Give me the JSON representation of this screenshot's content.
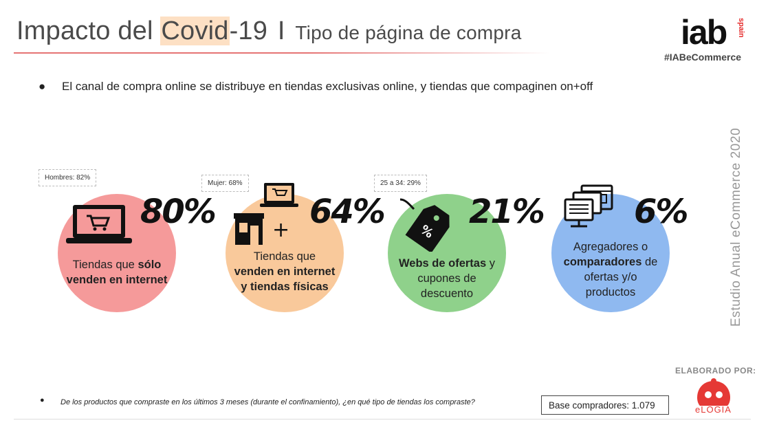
{
  "header": {
    "title_pre": "Impacto del ",
    "title_hl": "Covid",
    "title_post": "-19",
    "title_sep": "I",
    "subtitle": "Tipo de página de compra",
    "logo_text": "iab",
    "logo_sub": "spain",
    "hashtag": "#IABeCommerce"
  },
  "bullet": {
    "marker": "●",
    "text": "El canal de compra online se distribuye en tiendas exclusivas online, y tiendas que compaginen on+off"
  },
  "side_label": "Estudio Anual eCommerce  2020",
  "items": [
    {
      "percent": "80%",
      "callout": "Hombres: 82%",
      "text_pre": "Tiendas que ",
      "text_bold": "sólo venden en internet",
      "text_post": "",
      "color": "#f59a9a",
      "icon": "laptop-cart-icon"
    },
    {
      "percent": "64%",
      "callout": "Mujer: 68%",
      "text_pre": "Tiendas que ",
      "text_bold": "venden en internet y tiendas físicas",
      "text_post": "",
      "color": "#f9c99b",
      "icon": "store-plus-laptop-icon",
      "plus": "+"
    },
    {
      "percent": "21%",
      "callout": "25 a 34: 29%",
      "text_pre": "",
      "text_bold": "Webs de ofertas",
      "text_post": " y cupones de descuento",
      "color": "#8fd18b",
      "icon": "discount-tag-icon",
      "tag_text": "%"
    },
    {
      "percent": "6%",
      "callout": "",
      "text_pre": "Agregadores o ",
      "text_bold": "comparadores",
      "text_post": " de ofertas y/o productos",
      "color": "#8fb9f0",
      "icon": "comparison-screens-icon"
    }
  ],
  "footer": {
    "marker": "●",
    "question": "De los productos que compraste en los últimos 3 meses (durante el confinamiento), ¿en qué tipo de tiendas los compraste?",
    "base": "Base compradores: 1.079",
    "elaborado": "ELABORADO POR:",
    "brand": "eLOGIA"
  }
}
